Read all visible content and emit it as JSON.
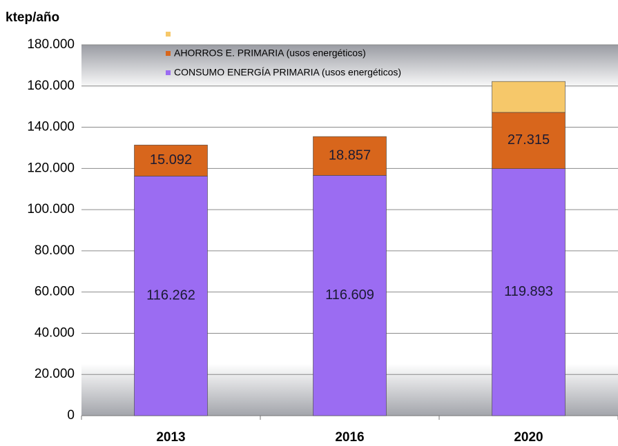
{
  "chart_data": {
    "type": "stacked_bar",
    "y_label": "ktep/año",
    "categories": [
      "2013",
      "2016",
      "2020"
    ],
    "series": [
      {
        "name": "CONSUMO ENERGÍA PRIMARIA (usos energéticos)",
        "color": "#9b6cf2",
        "values": [
          116262,
          116609,
          119893
        ],
        "value_labels": [
          "116.262",
          "116.609",
          "119.893"
        ]
      },
      {
        "name": "AHORROS E. PRIMARIA (usos energéticos)",
        "color": "#d8661c",
        "values": [
          15092,
          18857,
          27315
        ],
        "value_labels": [
          "15.092",
          "18.857",
          "27.315"
        ]
      },
      {
        "color": "#f6c86a",
        "values": [
          null,
          null,
          15000
        ]
      }
    ],
    "ylim": [
      0,
      180000
    ],
    "yticks": [
      0,
      {
        "value": 20000,
        "label": "20.000"
      },
      {
        "value": 40000,
        "label": "40.000"
      },
      {
        "value": 60000,
        "label": "60.000"
      },
      {
        "value": 80000,
        "label": "80.000"
      },
      {
        "value": 100000,
        "label": "100.000"
      },
      {
        "value": 120000,
        "label": "120.000"
      },
      {
        "value": 140000,
        "label": "140.000"
      },
      {
        "value": 160000,
        "label": "160.000"
      },
      {
        "value": 180000,
        "label": "180.000"
      }
    ],
    "grid": true
  }
}
